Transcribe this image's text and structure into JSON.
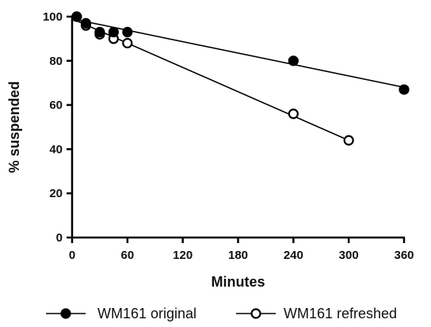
{
  "chart_data": {
    "type": "scatter",
    "xlabel": "Minutes",
    "ylabel": "% suspended",
    "xlim": [
      0,
      360
    ],
    "ylim": [
      0,
      100
    ],
    "xticks": [
      0,
      60,
      120,
      180,
      240,
      300,
      360
    ],
    "yticks": [
      0,
      20,
      40,
      60,
      80,
      100
    ],
    "grid": false,
    "legend_position": "bottom",
    "series": [
      {
        "name": "WM161 original",
        "marker": "filled-circle",
        "color": "#000000",
        "points": [
          {
            "x": 5,
            "y": 100
          },
          {
            "x": 15,
            "y": 97
          },
          {
            "x": 30,
            "y": 93
          },
          {
            "x": 45,
            "y": 93
          },
          {
            "x": 60,
            "y": 93
          },
          {
            "x": 240,
            "y": 80
          },
          {
            "x": 360,
            "y": 67
          }
        ],
        "fit": {
          "x": [
            0,
            360
          ],
          "y": [
            99,
            68
          ]
        }
      },
      {
        "name": "WM161 refreshed",
        "marker": "open-circle",
        "color": "#000000",
        "points": [
          {
            "x": 5,
            "y": 100
          },
          {
            "x": 15,
            "y": 96
          },
          {
            "x": 30,
            "y": 92
          },
          {
            "x": 45,
            "y": 90
          },
          {
            "x": 60,
            "y": 88
          },
          {
            "x": 240,
            "y": 56
          },
          {
            "x": 300,
            "y": 44
          }
        ],
        "fit": {
          "x": [
            0,
            300
          ],
          "y": [
            99,
            44
          ]
        }
      }
    ]
  }
}
